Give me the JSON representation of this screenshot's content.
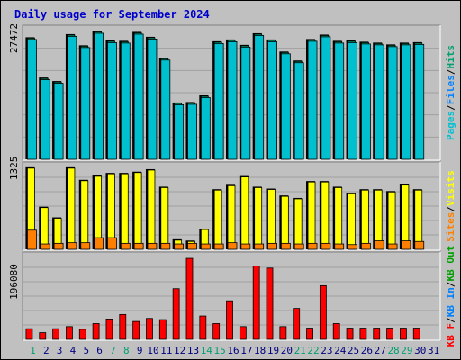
{
  "title": "Daily usage for September 2024",
  "colors": {
    "background": "#c0c0c0",
    "title": "#0000cc",
    "pages": "#00c0d0",
    "files": "#0080ff",
    "hits": "#00a070",
    "visits": "#ffff00",
    "sites": "#ff8000",
    "kbf": "#ff0000",
    "kbin": "#0080ff",
    "kbout": "#00a000",
    "weekend_day": "#00a070",
    "weekday": "#000080"
  },
  "chart_data": [
    {
      "type": "bar",
      "panel": "hits-pages",
      "ytick_label": "27472",
      "ytick_value": 27472,
      "ylim": [
        0,
        29800
      ],
      "legend_right": [
        "Pages",
        "/",
        "Files",
        "/",
        "Hits"
      ],
      "categories": [
        "1",
        "2",
        "3",
        "4",
        "5",
        "6",
        "7",
        "8",
        "9",
        "10",
        "11",
        "12",
        "13",
        "14",
        "15",
        "16",
        "17",
        "18",
        "19",
        "20",
        "21",
        "22",
        "23",
        "24",
        "25",
        "26",
        "27",
        "28",
        "29",
        "30"
      ],
      "series": [
        {
          "name": "Hits",
          "values": [
            27300,
            18300,
            17500,
            28000,
            25500,
            28700,
            26600,
            26500,
            28500,
            27400,
            22700,
            12700,
            12800,
            14300,
            26400,
            26800,
            25600,
            28200,
            26800,
            24100,
            22100,
            26900,
            27900,
            26500,
            26600,
            26300,
            26100,
            25700,
            26100,
            26200
          ]
        },
        {
          "name": "Pages",
          "values": [
            27000,
            18000,
            17200,
            27700,
            25200,
            28400,
            26300,
            26200,
            28200,
            27100,
            22400,
            12400,
            12500,
            14000,
            26100,
            26500,
            25300,
            27900,
            26500,
            23800,
            21800,
            26600,
            27600,
            26200,
            26300,
            26000,
            25800,
            25400,
            25800,
            25900
          ]
        }
      ]
    },
    {
      "type": "bar",
      "panel": "visits-sites",
      "ytick_label": "1325",
      "ytick_value": 1325,
      "ylim": [
        0,
        1380
      ],
      "legend_right": [
        "Sites",
        "/",
        "Visits"
      ],
      "categories": [
        "1",
        "2",
        "3",
        "4",
        "5",
        "6",
        "7",
        "8",
        "9",
        "10",
        "11",
        "12",
        "13",
        "14",
        "15",
        "16",
        "17",
        "18",
        "19",
        "20",
        "21",
        "22",
        "23",
        "24",
        "25",
        "26",
        "27",
        "28",
        "29",
        "30"
      ],
      "series": [
        {
          "name": "Visits",
          "values": [
            1310,
            680,
            510,
            1310,
            1110,
            1180,
            1220,
            1220,
            1240,
            1280,
            1000,
            160,
            140,
            330,
            960,
            1030,
            1170,
            1000,
            970,
            860,
            820,
            1090,
            1090,
            1000,
            900,
            960,
            960,
            930,
            1040,
            960
          ]
        },
        {
          "name": "Sites",
          "values": [
            320,
            100,
            110,
            120,
            120,
            200,
            200,
            110,
            110,
            110,
            110,
            100,
            110,
            100,
            100,
            120,
            100,
            100,
            110,
            110,
            100,
            110,
            110,
            100,
            90,
            110,
            150,
            100,
            150,
            140
          ]
        }
      ]
    },
    {
      "type": "bar",
      "panel": "kbytes",
      "ytick_label": "196080",
      "ytick_value": 196080,
      "ylim": [
        0,
        285000
      ],
      "legend_right": [
        "KB F",
        "/",
        "KB In",
        "/",
        "KB Out"
      ],
      "categories": [
        "1",
        "2",
        "3",
        "4",
        "5",
        "6",
        "7",
        "8",
        "9",
        "10",
        "11",
        "12",
        "13",
        "14",
        "15",
        "16",
        "17",
        "18",
        "19",
        "20",
        "21",
        "22",
        "23",
        "24",
        "25",
        "26",
        "27",
        "28",
        "29",
        "30"
      ],
      "series": [
        {
          "name": "KB F",
          "values": [
            38000,
            25000,
            38000,
            45000,
            36000,
            55000,
            70000,
            85000,
            62000,
            72000,
            68000,
            170000,
            270000,
            80000,
            55000,
            130000,
            45000,
            245000,
            238000,
            45000,
            105000,
            40000,
            180000,
            55000,
            40000,
            40000,
            40000,
            40000,
            40000,
            40000
          ]
        }
      ]
    }
  ],
  "x_axis": {
    "labels": [
      "1",
      "2",
      "3",
      "4",
      "5",
      "6",
      "7",
      "8",
      "9",
      "10",
      "11",
      "12",
      "13",
      "14",
      "15",
      "16",
      "17",
      "18",
      "19",
      "20",
      "21",
      "22",
      "23",
      "24",
      "25",
      "26",
      "27",
      "28",
      "29",
      "30",
      "31"
    ],
    "weekend": [
      1,
      7,
      8,
      14,
      15,
      21,
      22,
      28,
      29
    ]
  }
}
